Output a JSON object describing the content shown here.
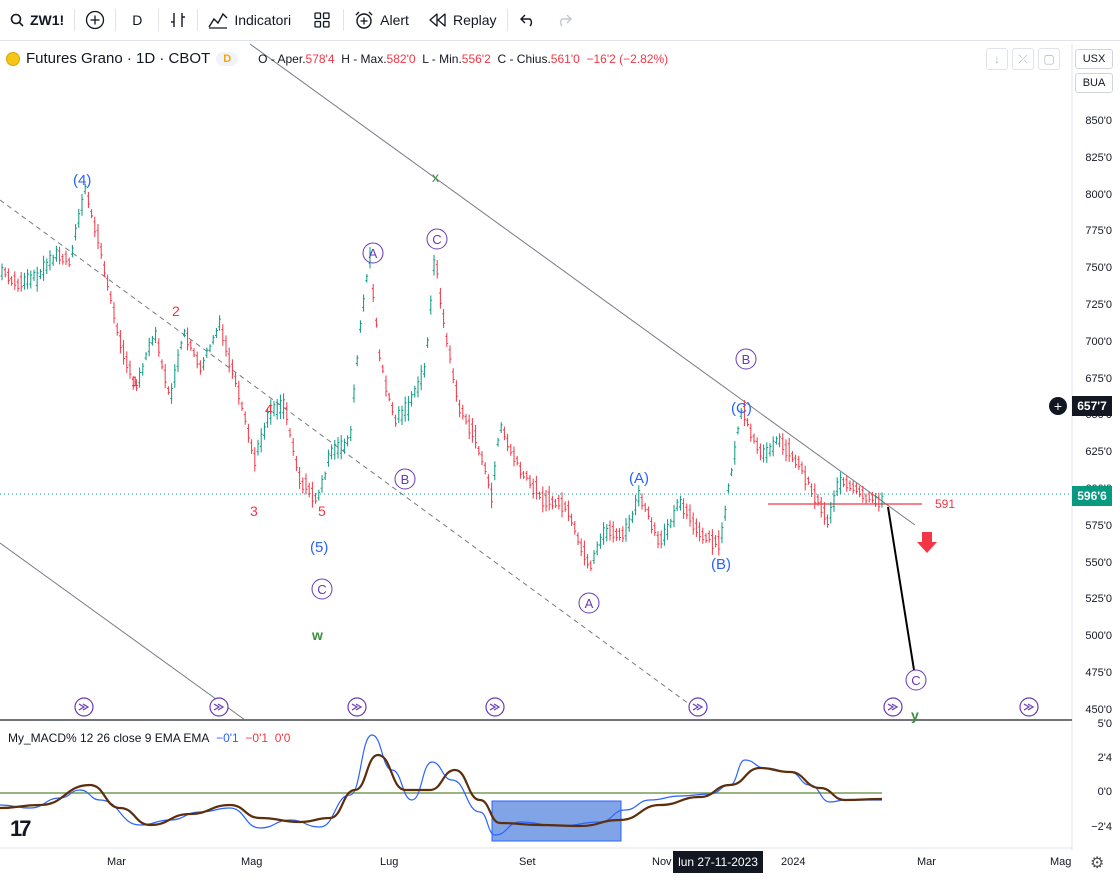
{
  "toolbar": {
    "symbol": "ZW1!",
    "interval": "D",
    "indicators_label": "Indicatori",
    "alert_label": "Alert",
    "replay_label": "Replay"
  },
  "legend": {
    "title": "Futures Grano · 1D · CBOT",
    "delay_badge": "D",
    "o_label": "O - Aper.",
    "o_value": "578'4",
    "h_label": "H - Max.",
    "h_value": "582'0",
    "l_label": "L - Min.",
    "l_value": "556'2",
    "c_label": "C - Chius.",
    "c_value": "561'0",
    "change": "−16'2 (−2.82%)"
  },
  "currency": "USX",
  "scale_mode": "BUA",
  "price_axis": [
    "850'0",
    "825'0",
    "800'0",
    "775'0",
    "750'0",
    "725'0",
    "700'0",
    "675'0",
    "650'0",
    "625'0",
    "600'0",
    "575'0",
    "550'0",
    "525'0",
    "500'0",
    "475'0",
    "450'0"
  ],
  "crosshair_price": "657'7",
  "last_price": "596'6",
  "level_label": "591",
  "macd": {
    "name": "My_MACD% 12 26 close 9 EMA EMA",
    "v1": "−0'1",
    "v2": "−0'1",
    "v3": "0'0",
    "axis": [
      "5'0",
      "2'4",
      "0'0",
      "−2'4"
    ]
  },
  "time_axis": [
    "Mar",
    "Mag",
    "Lug",
    "Set",
    "Nov",
    "2024",
    "Mar",
    "Mag"
  ],
  "crosshair_time": "lun 27-11-2023",
  "wave_labels": {
    "w4": "(4)",
    "w5p": "(5)",
    "red1": "1",
    "red2": "2",
    "red3": "3",
    "red4": "4",
    "red5": "5",
    "cA1": "A",
    "cB1": "B",
    "cC1": "C",
    "cC2": "C",
    "cA2": "A",
    "cB2": "B",
    "cC3": "C",
    "pA": "(A)",
    "pB": "(B)",
    "pC": "(C)",
    "x": "x",
    "w": "w",
    "y": "y"
  },
  "colors": {
    "up": "#089981",
    "down": "#f23645",
    "wave_blue": "#2962ff",
    "wave_purple": "#673ab7",
    "green": "#388e3c",
    "macd_line": "#2962ff",
    "signal": "#5d2e0c"
  }
}
